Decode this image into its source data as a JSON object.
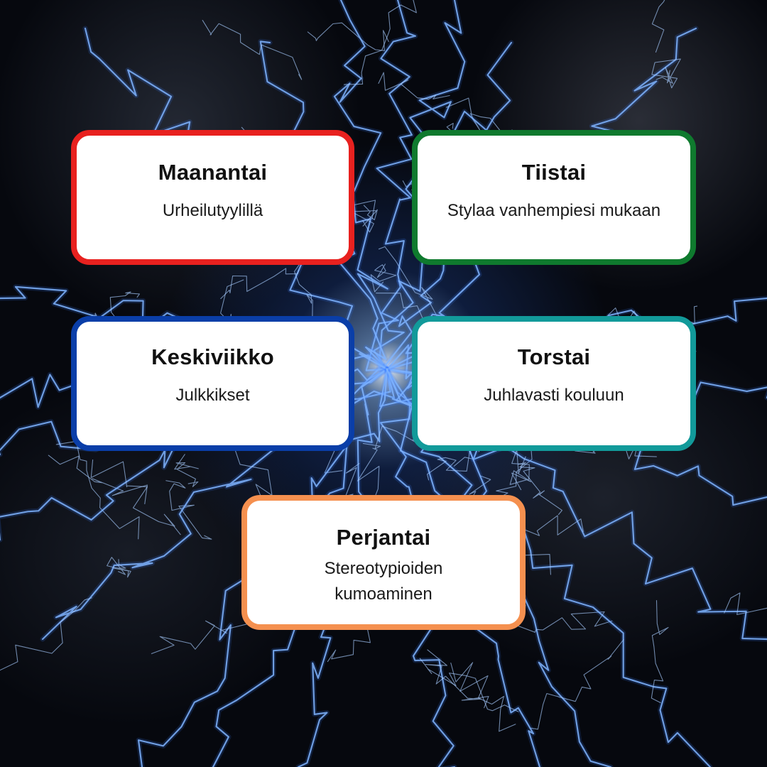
{
  "colors": {
    "monday_border": "#e8211f",
    "tuesday_border": "#0f7a2e",
    "wednesday_border": "#0a3ea8",
    "thursday_border": "#129a9a",
    "friday_border": "#f5904f",
    "lightning": "#7fb4ff",
    "background": "#06080e"
  },
  "background_image": "lightning-storm",
  "days": [
    {
      "day": "Maanantai",
      "theme": "Urheilutyylillä"
    },
    {
      "day": "Tiistai",
      "theme": "Stylaa vanhempiesi mukaan"
    },
    {
      "day": "Keskiviikko",
      "theme": "Julkkikset"
    },
    {
      "day": "Torstai",
      "theme": "Juhlavasti kouluun"
    },
    {
      "day": "Perjantai",
      "theme": "Stereotypioiden kumoaminen"
    }
  ]
}
